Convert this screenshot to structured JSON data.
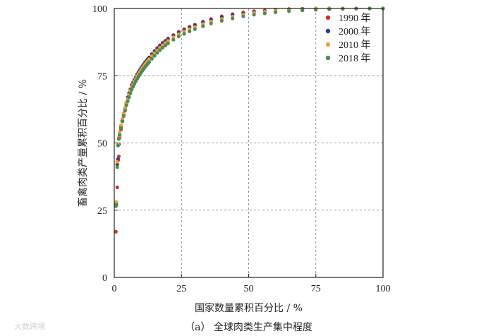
{
  "chart_data": {
    "type": "scatter",
    "xlabel": "国家数量累积百分比 / %",
    "ylabel": "畜禽肉类产量累积百分比 / %",
    "xlim": [
      0,
      100
    ],
    "ylim": [
      0,
      100
    ],
    "xticks": [
      0,
      25,
      50,
      75,
      100
    ],
    "yticks": [
      0,
      25,
      50,
      75,
      100
    ],
    "grid": true,
    "legend_position": "top-right",
    "caption": "（a） 全球肉类生产集中程度",
    "watermark": "大数跨境",
    "series": [
      {
        "name": "1990 年",
        "color": "#d62f2f",
        "x": [
          0.6,
          0.8,
          1.1,
          1.4,
          1.7,
          2.0,
          2.5,
          3.0,
          3.5,
          4.0,
          4.5,
          5.0,
          5.5,
          6.0,
          6.5,
          7.0,
          7.5,
          8.0,
          8.5,
          9.0,
          9.5,
          10.0,
          10.5,
          11.0,
          11.5,
          12.0,
          12.5,
          13.0,
          14,
          15,
          16,
          17,
          18,
          19,
          20,
          22,
          24,
          26,
          28,
          30,
          33,
          36,
          40,
          44,
          48,
          52,
          56,
          60,
          65,
          70,
          75,
          80,
          85,
          90,
          95,
          100
        ],
        "y": [
          17,
          27,
          33.5,
          43.5,
          45,
          52,
          55,
          58,
          60.5,
          62.5,
          64.5,
          66.5,
          68,
          69.5,
          71,
          72,
          73,
          74,
          75,
          76,
          77,
          77.8,
          78.5,
          79.2,
          80,
          80.6,
          81.2,
          81.8,
          83,
          84.2,
          85.3,
          86.3,
          87.2,
          88,
          88.8,
          90.1,
          91.3,
          92.3,
          93.2,
          94,
          95.1,
          96.1,
          97.1,
          97.9,
          98.5,
          99,
          99.3,
          99.6,
          99.8,
          99.9,
          99.95,
          100,
          100,
          100,
          100,
          100
        ]
      },
      {
        "name": "2000 年",
        "color": "#2f3a7a",
        "x": [
          0.6,
          0.8,
          1.1,
          1.4,
          1.7,
          2.0,
          2.5,
          3.0,
          3.5,
          4.0,
          4.5,
          5.0,
          5.5,
          6.0,
          6.5,
          7.0,
          7.5,
          8.0,
          8.5,
          9.0,
          9.5,
          10.0,
          10.5,
          11.0,
          11.5,
          12.0,
          12.5,
          13.0,
          14,
          15,
          16,
          17,
          18,
          19,
          20,
          22,
          24,
          26,
          28,
          30,
          33,
          36,
          40,
          44,
          48,
          52,
          56,
          60,
          65,
          70,
          75,
          80,
          85,
          90,
          95,
          100
        ],
        "y": [
          27,
          28,
          42,
          44,
          49.5,
          53,
          56,
          58.5,
          61,
          63,
          65,
          67,
          68.5,
          70,
          71.5,
          72.5,
          73.5,
          74.5,
          75.5,
          76.3,
          77.1,
          77.9,
          78.6,
          79.3,
          80,
          80.6,
          81.2,
          81.8,
          83,
          84.1,
          85.1,
          86.1,
          87,
          87.8,
          88.6,
          89.9,
          91,
          92,
          92.9,
          93.7,
          94.8,
          95.7,
          96.7,
          97.5,
          98.1,
          98.6,
          99,
          99.3,
          99.6,
          99.8,
          99.9,
          100,
          100,
          100,
          100,
          100
        ]
      },
      {
        "name": "2010 年",
        "color": "#f2a030",
        "x": [
          0.6,
          0.8,
          1.1,
          1.4,
          1.7,
          2.0,
          2.5,
          3.0,
          3.5,
          4.0,
          4.5,
          5.0,
          5.5,
          6.0,
          6.5,
          7.0,
          7.5,
          8.0,
          8.5,
          9.0,
          9.5,
          10.0,
          10.5,
          11.0,
          11.5,
          12.0,
          12.5,
          13.0,
          14,
          15,
          16,
          17,
          18,
          19,
          20,
          22,
          24,
          26,
          28,
          30,
          33,
          36,
          40,
          44,
          48,
          52,
          56,
          60,
          65,
          70,
          75,
          80,
          85,
          90,
          95,
          100
        ],
        "y": [
          28,
          28,
          43,
          49.5,
          52,
          54,
          56.5,
          59,
          61,
          63,
          65,
          66.5,
          68,
          69.5,
          70.8,
          71.8,
          72.8,
          73.8,
          74.8,
          75.6,
          76.4,
          77.2,
          77.9,
          78.6,
          79.3,
          79.9,
          80.5,
          81.1,
          82.3,
          83.4,
          84.4,
          85.4,
          86.3,
          87.1,
          87.9,
          89.3,
          90.4,
          91.4,
          92.3,
          93.1,
          94.2,
          95.1,
          96.1,
          97,
          97.7,
          98.3,
          98.8,
          99.2,
          99.5,
          99.7,
          99.85,
          99.95,
          100,
          100,
          100,
          100
        ]
      },
      {
        "name": "2018 年",
        "color": "#4c8a55",
        "x": [
          0.6,
          0.8,
          1.1,
          1.4,
          1.7,
          2.0,
          2.5,
          3.0,
          3.5,
          4.0,
          4.5,
          5.0,
          5.5,
          6.0,
          6.5,
          7.0,
          7.5,
          8.0,
          8.5,
          9.0,
          9.5,
          10.0,
          10.5,
          11.0,
          11.5,
          12.0,
          12.5,
          13.0,
          14,
          15,
          16,
          17,
          18,
          19,
          20,
          22,
          24,
          26,
          28,
          30,
          33,
          36,
          40,
          44,
          48,
          52,
          56,
          60,
          65,
          70,
          75,
          80,
          85,
          90,
          95,
          100
        ],
        "y": [
          26.5,
          27,
          41,
          49,
          51.5,
          53,
          55.5,
          58,
          60,
          62,
          64,
          65.5,
          67,
          68.5,
          69.8,
          70.9,
          71.9,
          72.9,
          73.8,
          74.6,
          75.4,
          76.2,
          76.9,
          77.6,
          78.3,
          78.9,
          79.5,
          80.1,
          81.3,
          82.4,
          83.5,
          84.5,
          85.4,
          86.2,
          87,
          88.4,
          89.6,
          90.6,
          91.5,
          92.3,
          93.4,
          94.4,
          95.4,
          96.3,
          97.1,
          97.7,
          98.2,
          98.6,
          99,
          99.3,
          99.5,
          99.7,
          99.85,
          99.95,
          100,
          100
        ]
      }
    ]
  }
}
